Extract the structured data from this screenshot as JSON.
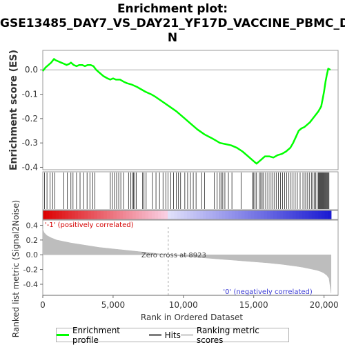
{
  "chart_data": {
    "type": "line",
    "title_lines": [
      "Enrichment plot:",
      "GSE13485_DAY7_VS_DAY21_YF17D_VACCINE_PBMC_D",
      "N"
    ],
    "xlabel": "Rank in Ordered Dataset",
    "xlim": [
      0,
      21000
    ],
    "x_ticks": [
      0,
      5000,
      10000,
      15000,
      20000
    ],
    "x_tick_labels": [
      "0",
      "5,000",
      "10,000",
      "15,000",
      "20,000"
    ],
    "es_panel": {
      "ylabel": "Enrichment score (ES)",
      "ylim": [
        -0.41,
        0.08
      ],
      "y_ticks": [
        0.0,
        -0.1,
        -0.2,
        -0.3,
        -0.4
      ],
      "y_tick_labels": [
        "0.0",
        "-0.1",
        "-0.2",
        "-0.3",
        "-0.4"
      ],
      "zero_line": true,
      "series": [
        {
          "name": "Enrichment profile",
          "color": "#00ff00",
          "x": [
            0,
            200,
            400,
            600,
            800,
            900,
            1100,
            1300,
            1500,
            1700,
            1900,
            2000,
            2200,
            2400,
            2600,
            2800,
            3000,
            3200,
            3400,
            3600,
            3800,
            4000,
            4300,
            4600,
            4800,
            5000,
            5200,
            5500,
            5800,
            6000,
            6300,
            6700,
            7000,
            7300,
            7700,
            8000,
            8500,
            9000,
            9500,
            10000,
            10500,
            11000,
            11500,
            12000,
            12300,
            12600,
            13000,
            13400,
            13800,
            14200,
            14600,
            14900,
            15200,
            15500,
            15800,
            16100,
            16400,
            16700,
            17000,
            17300,
            17600,
            17800,
            18000,
            18200,
            18400,
            18600,
            18800,
            19000,
            19200,
            19400,
            19600,
            19800,
            19900,
            20000,
            20100,
            20200,
            20300,
            20450
          ],
          "y": [
            -0.005,
            0.01,
            0.02,
            0.03,
            0.045,
            0.04,
            0.035,
            0.03,
            0.025,
            0.02,
            0.025,
            0.03,
            0.02,
            0.015,
            0.02,
            0.02,
            0.015,
            0.02,
            0.02,
            0.015,
            0.0,
            -0.01,
            -0.025,
            -0.035,
            -0.04,
            -0.035,
            -0.04,
            -0.04,
            -0.05,
            -0.055,
            -0.06,
            -0.07,
            -0.08,
            -0.09,
            -0.1,
            -0.11,
            -0.13,
            -0.15,
            -0.17,
            -0.195,
            -0.22,
            -0.245,
            -0.265,
            -0.28,
            -0.29,
            -0.3,
            -0.305,
            -0.31,
            -0.32,
            -0.335,
            -0.355,
            -0.37,
            -0.385,
            -0.37,
            -0.355,
            -0.355,
            -0.36,
            -0.35,
            -0.345,
            -0.335,
            -0.32,
            -0.3,
            -0.275,
            -0.25,
            -0.24,
            -0.235,
            -0.225,
            -0.215,
            -0.2,
            -0.185,
            -0.17,
            -0.15,
            -0.12,
            -0.09,
            -0.05,
            -0.02,
            0.005,
            0.0
          ]
        }
      ]
    },
    "hits_legend": "Hits",
    "hits_approx_ranks": [
      120,
      300,
      520,
      700,
      850,
      1500,
      1750,
      2000,
      2150,
      2400,
      2650,
      2900,
      3150,
      3350,
      3550,
      3700,
      4800,
      4950,
      5100,
      5250,
      5400,
      5550,
      5750,
      6100,
      6250,
      6350,
      6450,
      6550,
      6650,
      7100,
      7200,
      7350,
      7800,
      8050,
      8300,
      8550,
      8750,
      8900,
      9100,
      9300,
      9500,
      9650,
      9800,
      10100,
      10300,
      10500,
      10700,
      10900,
      11300,
      11500,
      12200,
      12400,
      12600,
      12700,
      12800,
      12950,
      13200,
      13450,
      14100,
      14900,
      15000,
      15100,
      15200,
      15400,
      15500,
      15600,
      15700,
      15850,
      16000,
      16150,
      16300,
      16450,
      16600,
      16750,
      16900,
      17050,
      17200,
      17350,
      17500,
      17650,
      17800,
      17950,
      18100,
      18300,
      18500,
      18650,
      18800,
      18950,
      19100,
      19200,
      19300,
      19400,
      19500,
      19600,
      19650,
      19700,
      19750,
      19800,
      19850,
      19900,
      19950,
      20000,
      20050,
      20100,
      20150,
      20200,
      20250,
      20300,
      20350
    ],
    "metric_panel": {
      "ylabel": "Ranked list metric (Signal2Noise)",
      "ylim": [
        -0.55,
        0.47
      ],
      "y_ticks": [
        0.4,
        0.2,
        0.0,
        -0.2,
        -0.4
      ],
      "y_tick_labels": [
        "0.4",
        "0.2",
        "0.0",
        "-0.2",
        "-0.4"
      ],
      "series_name": "Ranking metric scores",
      "curve_x": [
        0,
        100,
        300,
        600,
        1000,
        1500,
        2000,
        3000,
        4000,
        5000,
        6000,
        7000,
        8000,
        8923,
        10000,
        11000,
        12000,
        13000,
        14000,
        15000,
        16000,
        17000,
        18000,
        18500,
        19000,
        19500,
        19800,
        20000,
        20200,
        20350,
        20450,
        20500
      ],
      "curve_y": [
        0.35,
        0.3,
        0.26,
        0.23,
        0.2,
        0.18,
        0.16,
        0.13,
        0.1,
        0.08,
        0.06,
        0.04,
        0.02,
        0.0,
        -0.02,
        -0.035,
        -0.05,
        -0.065,
        -0.08,
        -0.095,
        -0.11,
        -0.13,
        -0.155,
        -0.17,
        -0.19,
        -0.21,
        -0.23,
        -0.25,
        -0.28,
        -0.32,
        -0.45,
        -0.52
      ],
      "zero_cross_label": "Zero cross at 8923",
      "zero_cross_rank": 8923,
      "positive_label": "'-1' (positively correlated)",
      "negative_label": "'0' (negatively correlated)"
    },
    "legend": [
      {
        "label": "Enrichment profile",
        "color": "#00ff00"
      },
      {
        "label": "Hits",
        "color": "#7f7f7f"
      },
      {
        "label": "Ranking metric scores",
        "color": "#d8d8d8"
      }
    ]
  }
}
